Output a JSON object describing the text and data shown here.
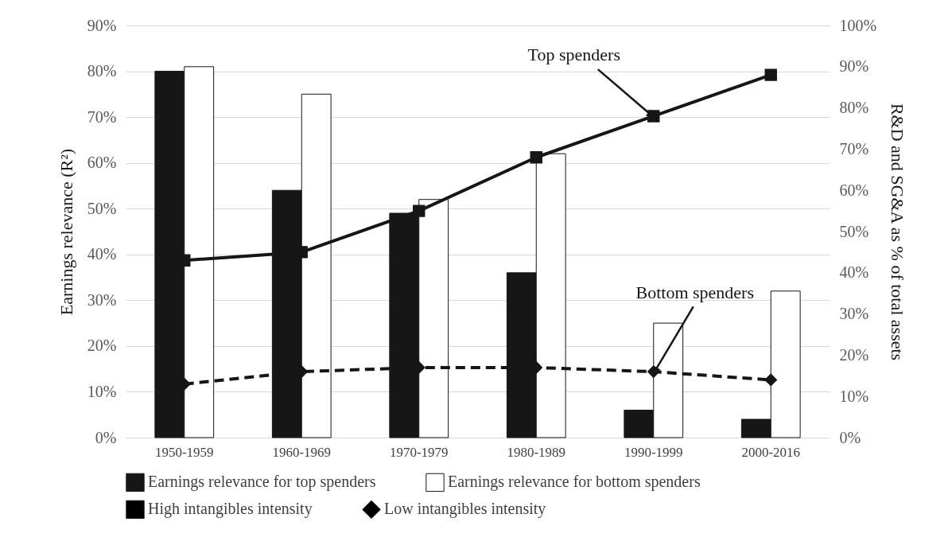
{
  "chart_data": {
    "type": "bar",
    "ylabel": "Earnings relevance (R²)",
    "y2label": "R&D and SG&A as % of total assets",
    "categories": [
      "1950-1959",
      "1960-1969",
      "1970-1979",
      "1980-1989",
      "1990-1999",
      "2000-2016"
    ],
    "series": [
      {
        "name": "Earnings relevance for top spenders",
        "color": "#161616",
        "values": [
          80,
          54,
          49,
          36,
          6,
          4
        ]
      },
      {
        "name": "Earnings relevance for bottom spenders",
        "color": "#ffffff",
        "values": [
          81,
          75,
          52,
          62,
          25,
          32
        ]
      },
      {
        "name": "High intangibles intensity",
        "type": "line",
        "axis": "y2",
        "color": "#161616",
        "marker": "square",
        "line_style": "solid",
        "values": [
          43,
          45,
          55,
          68,
          78,
          88
        ]
      },
      {
        "name": "Low intangibles intensity",
        "type": "line",
        "axis": "y2",
        "color": "#161616",
        "marker": "diamond",
        "line_style": "dashed",
        "values": [
          13,
          16,
          17,
          17,
          16,
          14
        ]
      }
    ],
    "ylim": [
      0,
      90
    ],
    "yticks": [
      {
        "value": 0,
        "label": "0%"
      },
      {
        "value": 10,
        "label": "10%"
      },
      {
        "value": 20,
        "label": "20%"
      },
      {
        "value": 30,
        "label": "30%"
      },
      {
        "value": 40,
        "label": "40%"
      },
      {
        "value": 50,
        "label": "50%"
      },
      {
        "value": 60,
        "label": "60%"
      },
      {
        "value": 70,
        "label": "70%"
      },
      {
        "value": 80,
        "label": "80%"
      },
      {
        "value": 90,
        "label": "90%"
      }
    ],
    "y2lim": [
      0,
      100
    ],
    "y2ticks": [
      {
        "value": 0,
        "label": "0%"
      },
      {
        "value": 10,
        "label": "10%"
      },
      {
        "value": 20,
        "label": "20%"
      },
      {
        "value": 30,
        "label": "30%"
      },
      {
        "value": 40,
        "label": "40%"
      },
      {
        "value": 50,
        "label": "50%"
      },
      {
        "value": 60,
        "label": "60%"
      },
      {
        "value": 70,
        "label": "70%"
      },
      {
        "value": 80,
        "label": "80%"
      },
      {
        "value": 90,
        "label": "90%"
      },
      {
        "value": 100,
        "label": "100%"
      }
    ],
    "grid": "y",
    "legend": "bottom",
    "annotations": [
      {
        "text": "Top spenders",
        "x": "1990-1999",
        "y": 70
      },
      {
        "text": "Bottom spenders",
        "x": "1990-1999",
        "y": 14
      }
    ]
  }
}
